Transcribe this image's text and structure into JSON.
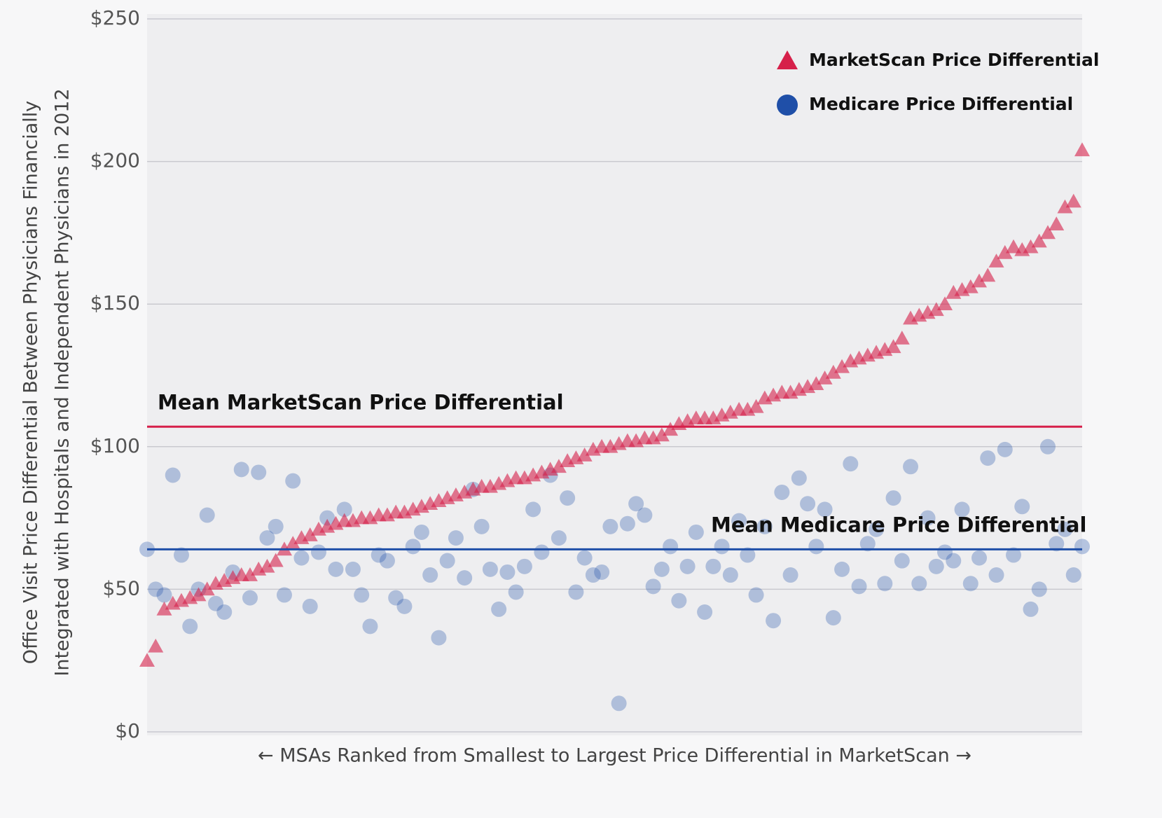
{
  "chart_data": {
    "type": "scatter",
    "ylabel": [
      "Office Visit Price Differential Between Physicians Financially",
      "Integrated with Hospitals and Independent Physicians in 2012"
    ],
    "xlabel": "← MSAs Ranked from Smallest to Largest Price Differential in MarketScan →",
    "ylim": [
      0,
      250
    ],
    "yticks": [
      {
        "value": 0,
        "label": "$0"
      },
      {
        "value": 50,
        "label": "$50"
      },
      {
        "value": 100,
        "label": "$100"
      },
      {
        "value": 150,
        "label": "$150"
      },
      {
        "value": 200,
        "label": "$200"
      },
      {
        "value": 250,
        "label": "$250"
      }
    ],
    "xlim": [
      1,
      110
    ],
    "grid": true,
    "legend": "top-right",
    "x": [
      1,
      2,
      3,
      4,
      5,
      6,
      7,
      8,
      9,
      10,
      11,
      12,
      13,
      14,
      15,
      16,
      17,
      18,
      19,
      20,
      21,
      22,
      23,
      24,
      25,
      26,
      27,
      28,
      29,
      30,
      31,
      32,
      33,
      34,
      35,
      36,
      37,
      38,
      39,
      40,
      41,
      42,
      43,
      44,
      45,
      46,
      47,
      48,
      49,
      50,
      51,
      52,
      53,
      54,
      55,
      56,
      57,
      58,
      59,
      60,
      61,
      62,
      63,
      64,
      65,
      66,
      67,
      68,
      69,
      70,
      71,
      72,
      73,
      74,
      75,
      76,
      77,
      78,
      79,
      80,
      81,
      82,
      83,
      84,
      85,
      86,
      87,
      88,
      89,
      90,
      91,
      92,
      93,
      94,
      95,
      96,
      97,
      98,
      99,
      100,
      101,
      102,
      103,
      104,
      105,
      106,
      107,
      108,
      109,
      110
    ],
    "series": [
      {
        "name": "MarketScan Price Differential",
        "color": "#d6204a",
        "marker": "triangle",
        "values": [
          25,
          30,
          43,
          45,
          46,
          47,
          48,
          50,
          52,
          53,
          54,
          55,
          55,
          57,
          58,
          60,
          64,
          66,
          68,
          69,
          71,
          72,
          73,
          74,
          74,
          75,
          75,
          76,
          76,
          77,
          77,
          78,
          79,
          80,
          81,
          82,
          83,
          84,
          85,
          86,
          86,
          87,
          88,
          89,
          89,
          90,
          91,
          92,
          93,
          95,
          96,
          97,
          99,
          100,
          100,
          101,
          102,
          102,
          103,
          103,
          104,
          106,
          108,
          109,
          110,
          110,
          110,
          111,
          112,
          113,
          113,
          114,
          117,
          118,
          119,
          119,
          120,
          121,
          122,
          124,
          126,
          128,
          130,
          131,
          132,
          133,
          134,
          135,
          138,
          145,
          146,
          147,
          148,
          150,
          154,
          155,
          156,
          158,
          160,
          165,
          168,
          170,
          169,
          170,
          172,
          175,
          178,
          184,
          186,
          204
        ]
      },
      {
        "name": "Medicare Price Differential",
        "color": "#1f4fa8",
        "marker": "circle",
        "values": [
          64,
          50,
          48,
          90,
          62,
          37,
          50,
          76,
          45,
          42,
          56,
          92,
          47,
          91,
          68,
          72,
          48,
          88,
          61,
          44,
          63,
          75,
          57,
          78,
          57,
          48,
          37,
          62,
          60,
          47,
          44,
          65,
          70,
          55,
          33,
          60,
          68,
          54,
          85,
          72,
          57,
          43,
          56,
          49,
          58,
          78,
          63,
          90,
          68,
          82,
          49,
          61,
          55,
          56,
          72,
          10,
          73,
          80,
          76,
          51,
          57,
          65,
          46,
          58,
          70,
          42,
          58,
          65,
          55,
          74,
          62,
          48,
          72,
          39,
          84,
          55,
          89,
          80,
          65,
          78,
          40,
          57,
          94,
          51,
          66,
          71,
          52,
          82,
          60,
          93,
          52,
          75,
          58,
          63,
          60,
          78,
          52,
          61,
          96,
          55,
          99,
          62,
          79,
          43,
          50,
          100,
          66,
          71,
          55,
          65
        ]
      }
    ],
    "reference_lines": [
      {
        "label": "Mean MarketScan Price Differential",
        "value": 107,
        "color": "#d6204a"
      },
      {
        "label": "Mean Medicare Price Differential",
        "value": 64,
        "color": "#1f4fa8"
      }
    ]
  }
}
